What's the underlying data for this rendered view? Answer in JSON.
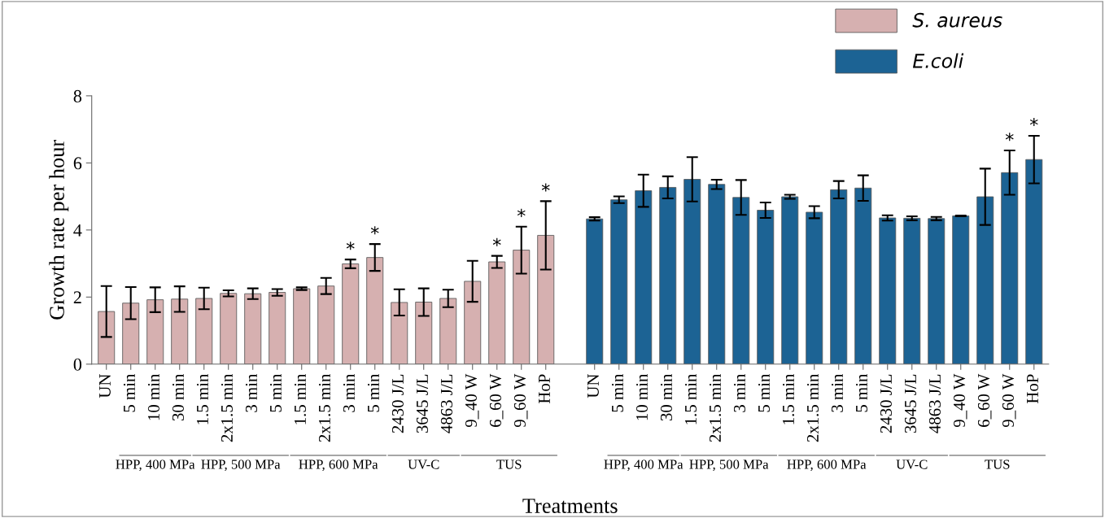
{
  "chart_data": {
    "type": "bar",
    "xlabel": "Treatments",
    "ylabel": "Growth rate per hour",
    "categories": [
      "UN",
      "5 min",
      "10 min",
      "30 min",
      "1.5 min",
      "2x1.5 min",
      "3 min",
      "5 min",
      "1.5 min",
      "2x1.5 min",
      "3 min",
      "5 min",
      "2430 J/L",
      "3645 J/L",
      "4863 J/L",
      "9_40 W",
      "6_60 W",
      "9_60 W",
      "HoP",
      null,
      "UN",
      "5 min",
      "10 min",
      "30 min",
      "1.5 min",
      "2x1.5 min",
      "3 min",
      "5 min",
      "1.5 min",
      "2x1.5 min",
      "3 min",
      "5 min",
      "2430 J/L",
      "3645 J/L",
      "4863 J/L",
      "9_40 W",
      "6_60 W",
      "9_60 W",
      "HoP"
    ],
    "series": [
      {
        "name": "S. aureus",
        "color": "#d6b0b0",
        "values": [
          1.57,
          1.82,
          1.92,
          1.94,
          1.96,
          2.11,
          2.1,
          2.14,
          2.25,
          2.33,
          2.99,
          3.18,
          1.84,
          1.85,
          1.96,
          2.47,
          3.05,
          3.4,
          3.84,
          null,
          null,
          null,
          null,
          null,
          null,
          null,
          null,
          null,
          null,
          null,
          null,
          null,
          null,
          null,
          null,
          null,
          null,
          null,
          null
        ],
        "errors": [
          0.76,
          0.48,
          0.37,
          0.38,
          0.32,
          0.09,
          0.16,
          0.1,
          0.04,
          0.24,
          0.13,
          0.4,
          0.39,
          0.41,
          0.26,
          0.61,
          0.18,
          0.7,
          1.02,
          null,
          null,
          null,
          null,
          null,
          null,
          null,
          null,
          null,
          null,
          null,
          null,
          null,
          null,
          null,
          null,
          null,
          null,
          null,
          null
        ],
        "value_labels": [
          null,
          null,
          null,
          null,
          null,
          null,
          null,
          null,
          null,
          null,
          "*",
          "*",
          null,
          null,
          null,
          null,
          "*",
          "*",
          "*",
          null,
          null,
          null,
          null,
          null,
          null,
          null,
          null,
          null,
          null,
          null,
          null,
          null,
          null,
          null,
          null,
          null,
          null,
          null,
          null
        ]
      },
      {
        "name": "E.coli",
        "color": "#1c6394",
        "values": [
          null,
          null,
          null,
          null,
          null,
          null,
          null,
          null,
          null,
          null,
          null,
          null,
          null,
          null,
          null,
          null,
          null,
          null,
          null,
          null,
          4.33,
          4.9,
          5.17,
          5.27,
          5.51,
          5.36,
          4.97,
          4.59,
          4.99,
          4.53,
          5.2,
          5.25,
          4.36,
          4.35,
          4.34,
          4.42,
          4.99,
          5.71,
          6.1
        ],
        "errors": [
          null,
          null,
          null,
          null,
          null,
          null,
          null,
          null,
          null,
          null,
          null,
          null,
          null,
          null,
          null,
          null,
          null,
          null,
          null,
          null,
          0.05,
          0.1,
          0.48,
          0.33,
          0.66,
          0.14,
          0.52,
          0.23,
          0.06,
          0.18,
          0.26,
          0.38,
          0.08,
          0.06,
          0.05,
          0.01,
          0.84,
          0.66,
          0.71
        ],
        "value_labels": [
          null,
          null,
          null,
          null,
          null,
          null,
          null,
          null,
          null,
          null,
          null,
          null,
          null,
          null,
          null,
          null,
          null,
          null,
          null,
          null,
          null,
          null,
          null,
          null,
          null,
          null,
          null,
          null,
          null,
          null,
          null,
          null,
          null,
          null,
          null,
          null,
          null,
          "*",
          "*"
        ]
      }
    ],
    "ylim": [
      0,
      8
    ],
    "yticks": [
      0,
      2,
      4,
      6,
      8
    ],
    "grid": false,
    "legend": "top right",
    "annotations": [
      "HPP, 400 MPa",
      "HPP, 500 MPa",
      "HPP, 600 MPa",
      "UV-C",
      "TUS",
      "HPP, 400 MPa",
      "HPP, 500 MPa",
      "HPP, 600 MPa",
      "UV-C",
      "TUS"
    ]
  }
}
